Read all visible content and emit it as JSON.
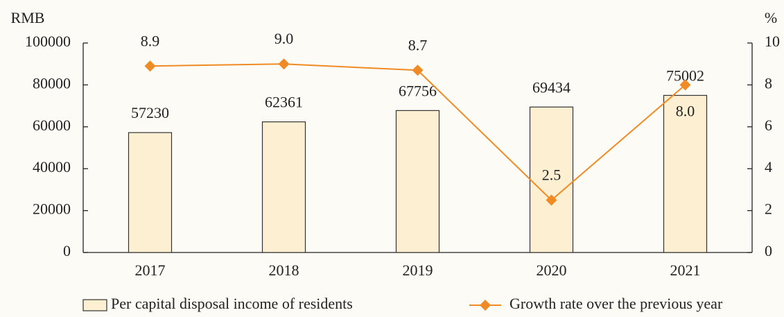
{
  "chart_data": {
    "type": "bar",
    "categories": [
      "2017",
      "2018",
      "2019",
      "2020",
      "2021"
    ],
    "y_label": "RMB",
    "y2_label": "%",
    "ylim": [
      0,
      100000
    ],
    "yticks": [
      0,
      20000,
      40000,
      60000,
      80000,
      100000
    ],
    "y2lim": [
      0,
      10
    ],
    "y2ticks": [
      0,
      2,
      4,
      6,
      8,
      10
    ],
    "series": [
      {
        "name": "Per capital disposal income of residents",
        "type": "bar",
        "color": "#fdf0d2",
        "values": [
          57230,
          62361,
          67756,
          69434,
          75002
        ]
      },
      {
        "name": "Growth rate over the previous year",
        "type": "line",
        "axis": "y2",
        "color": "#f08a24",
        "values": [
          8.9,
          9.0,
          8.7,
          2.5,
          8.0
        ],
        "value_labels": [
          "8.9",
          "9.0",
          "8.7",
          "2.5",
          "8.0"
        ]
      }
    ],
    "legend": "bottom"
  }
}
